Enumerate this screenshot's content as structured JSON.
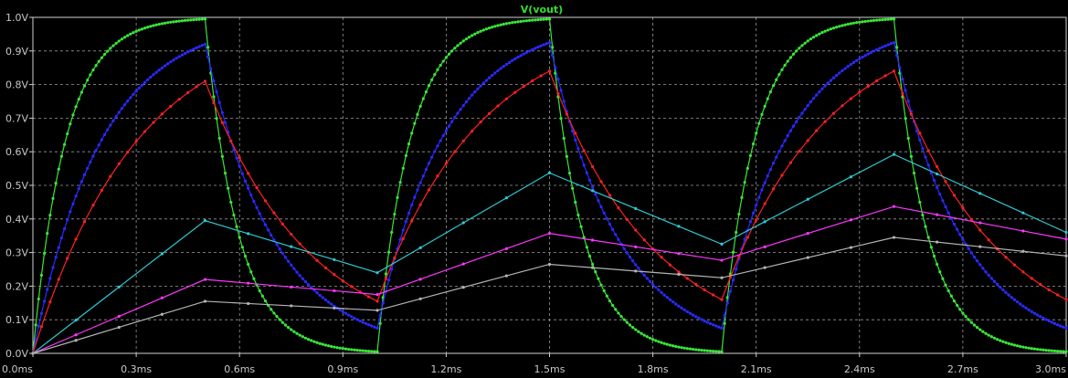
{
  "chart_data": {
    "type": "line",
    "title": "V(vout)",
    "xlabel": "",
    "ylabel": "",
    "xlim": [
      0,
      3.0
    ],
    "ylim": [
      0,
      1.0
    ],
    "grid": true,
    "x_ticks": [
      "0.0ms",
      "0.3ms",
      "0.6ms",
      "0.9ms",
      "1.2ms",
      "1.5ms",
      "1.8ms",
      "2.1ms",
      "2.4ms",
      "2.7ms",
      "3.0ms"
    ],
    "y_ticks": [
      "0.0V",
      "0.1V",
      "0.2V",
      "0.3V",
      "0.4V",
      "0.5V",
      "0.6V",
      "0.7V",
      "0.8V",
      "0.9V",
      "1.0V"
    ],
    "series": [
      {
        "color": "#39e639",
        "dense": true,
        "points": [
          [
            0,
            0
          ],
          [
            0.5,
            0.995
          ],
          [
            1.0,
            0.005
          ],
          [
            1.5,
            0.995
          ],
          [
            2.0,
            0.005
          ],
          [
            2.5,
            0.995
          ],
          [
            3.0,
            0.005
          ]
        ]
      },
      {
        "color": "#2a2aff",
        "dense": true,
        "points": [
          [
            0,
            0
          ],
          [
            0.5,
            0.92
          ],
          [
            1.0,
            0.075
          ],
          [
            1.5,
            0.925
          ],
          [
            2.0,
            0.075
          ],
          [
            2.5,
            0.925
          ],
          [
            3.0,
            0.075
          ]
        ]
      },
      {
        "color": "#ff2020",
        "dense": false,
        "points": [
          [
            0,
            0
          ],
          [
            0.5,
            0.81
          ],
          [
            1.0,
            0.155
          ],
          [
            1.5,
            0.84
          ],
          [
            2.0,
            0.16
          ],
          [
            2.5,
            0.84
          ],
          [
            3.0,
            0.16
          ]
        ]
      },
      {
        "color": "#2ec8d2",
        "dense": false,
        "points": [
          [
            0,
            0
          ],
          [
            0.5,
            0.395
          ],
          [
            1.0,
            0.24
          ],
          [
            1.5,
            0.537
          ],
          [
            2.0,
            0.325
          ],
          [
            2.5,
            0.592
          ],
          [
            3.0,
            0.36
          ]
        ]
      },
      {
        "color": "#ff36ff",
        "dense": false,
        "points": [
          [
            0,
            0
          ],
          [
            0.5,
            0.22
          ],
          [
            1.0,
            0.175
          ],
          [
            1.5,
            0.357
          ],
          [
            2.0,
            0.277
          ],
          [
            2.5,
            0.437
          ],
          [
            3.0,
            0.34
          ]
        ]
      },
      {
        "color": "#b4b4b4",
        "dense": false,
        "points": [
          [
            0,
            0
          ],
          [
            0.5,
            0.155
          ],
          [
            1.0,
            0.128
          ],
          [
            1.5,
            0.265
          ],
          [
            2.0,
            0.225
          ],
          [
            2.5,
            0.345
          ],
          [
            3.0,
            0.29
          ]
        ]
      }
    ]
  }
}
